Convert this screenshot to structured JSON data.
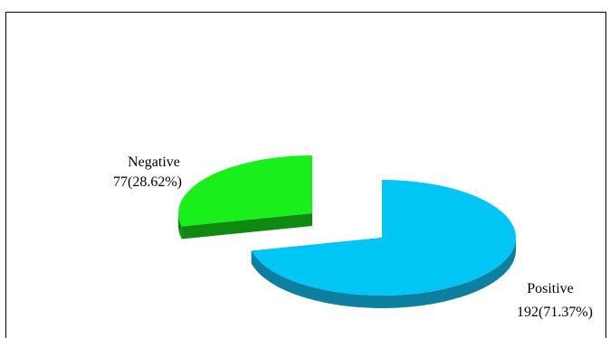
{
  "chart_data": {
    "type": "pie",
    "title": "",
    "slices": [
      {
        "label": "Negative",
        "value": 77,
        "percent_text": "77(28.62%)",
        "color": "#19ef1b",
        "side_color": "#0e8a10"
      },
      {
        "label": "Positive",
        "value": 192,
        "percent_text": "192(71.37%)",
        "color": "#00c6f6",
        "side_color": "#0d7fa0"
      }
    ],
    "style": "3d-exploded"
  }
}
